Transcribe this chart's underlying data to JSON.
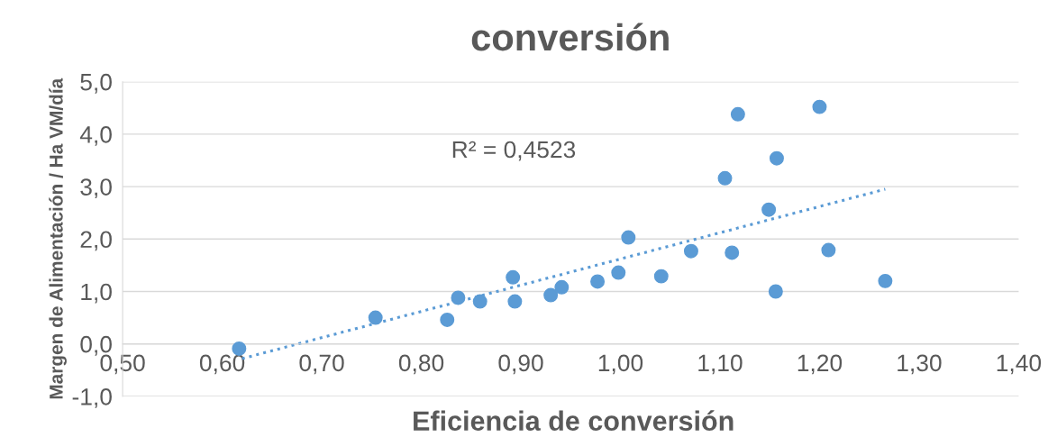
{
  "chart_data": {
    "type": "scatter",
    "title": "conversión",
    "xlabel": "Eficiencia de conversión",
    "ylabel": "Margen de Alimentación / Ha VM/día",
    "annotations": [
      "R² = 0,4523"
    ],
    "series": [
      {
        "color": "#5b9bd5",
        "marker": "circle",
        "x": [
          0.617,
          0.754,
          0.826,
          0.837,
          0.859,
          0.892,
          0.894,
          0.93,
          0.941,
          0.977,
          0.998,
          1.008,
          1.041,
          1.071,
          1.105,
          1.112,
          1.118,
          1.149,
          1.156,
          1.157,
          1.2,
          1.209,
          1.266
        ],
        "values": [
          -0.09,
          0.5,
          0.46,
          0.88,
          0.81,
          1.27,
          0.81,
          0.93,
          1.08,
          1.19,
          1.36,
          2.03,
          1.29,
          1.77,
          3.16,
          1.74,
          4.38,
          2.56,
          1.0,
          3.54,
          4.52,
          1.79,
          1.2
        ]
      },
      {
        "type": "line",
        "color": "#5b9bd5",
        "line_style": "dotted",
        "marker": "none",
        "x": [
          0.62,
          1.266
        ],
        "values": [
          -0.28,
          2.95
        ]
      }
    ],
    "xlim": [
      0.5,
      1.4
    ],
    "xticks": [
      {
        "value": 0.5,
        "label": "0,50"
      },
      {
        "value": 0.6,
        "label": "0,60"
      },
      {
        "value": 0.7,
        "label": "0,70"
      },
      {
        "value": 0.8,
        "label": "0,80"
      },
      {
        "value": 0.9,
        "label": "0,90"
      },
      {
        "value": 1.0,
        "label": "1,00"
      },
      {
        "value": 1.1,
        "label": "1,10"
      },
      {
        "value": 1.2,
        "label": "1,20"
      },
      {
        "value": 1.3,
        "label": "1,30"
      },
      {
        "value": 1.4,
        "label": "1,40"
      }
    ],
    "ylim": [
      -1,
      5
    ],
    "yticks": [
      {
        "value": -1,
        "label": "-1,0"
      },
      {
        "value": 0,
        "label": "0,0"
      },
      {
        "value": 1,
        "label": "1,0"
      },
      {
        "value": 2,
        "label": "2,0"
      },
      {
        "value": 3,
        "label": "3,0"
      },
      {
        "value": 4,
        "label": "4,0"
      },
      {
        "value": 5,
        "label": "5,0"
      }
    ],
    "grid": "y"
  }
}
